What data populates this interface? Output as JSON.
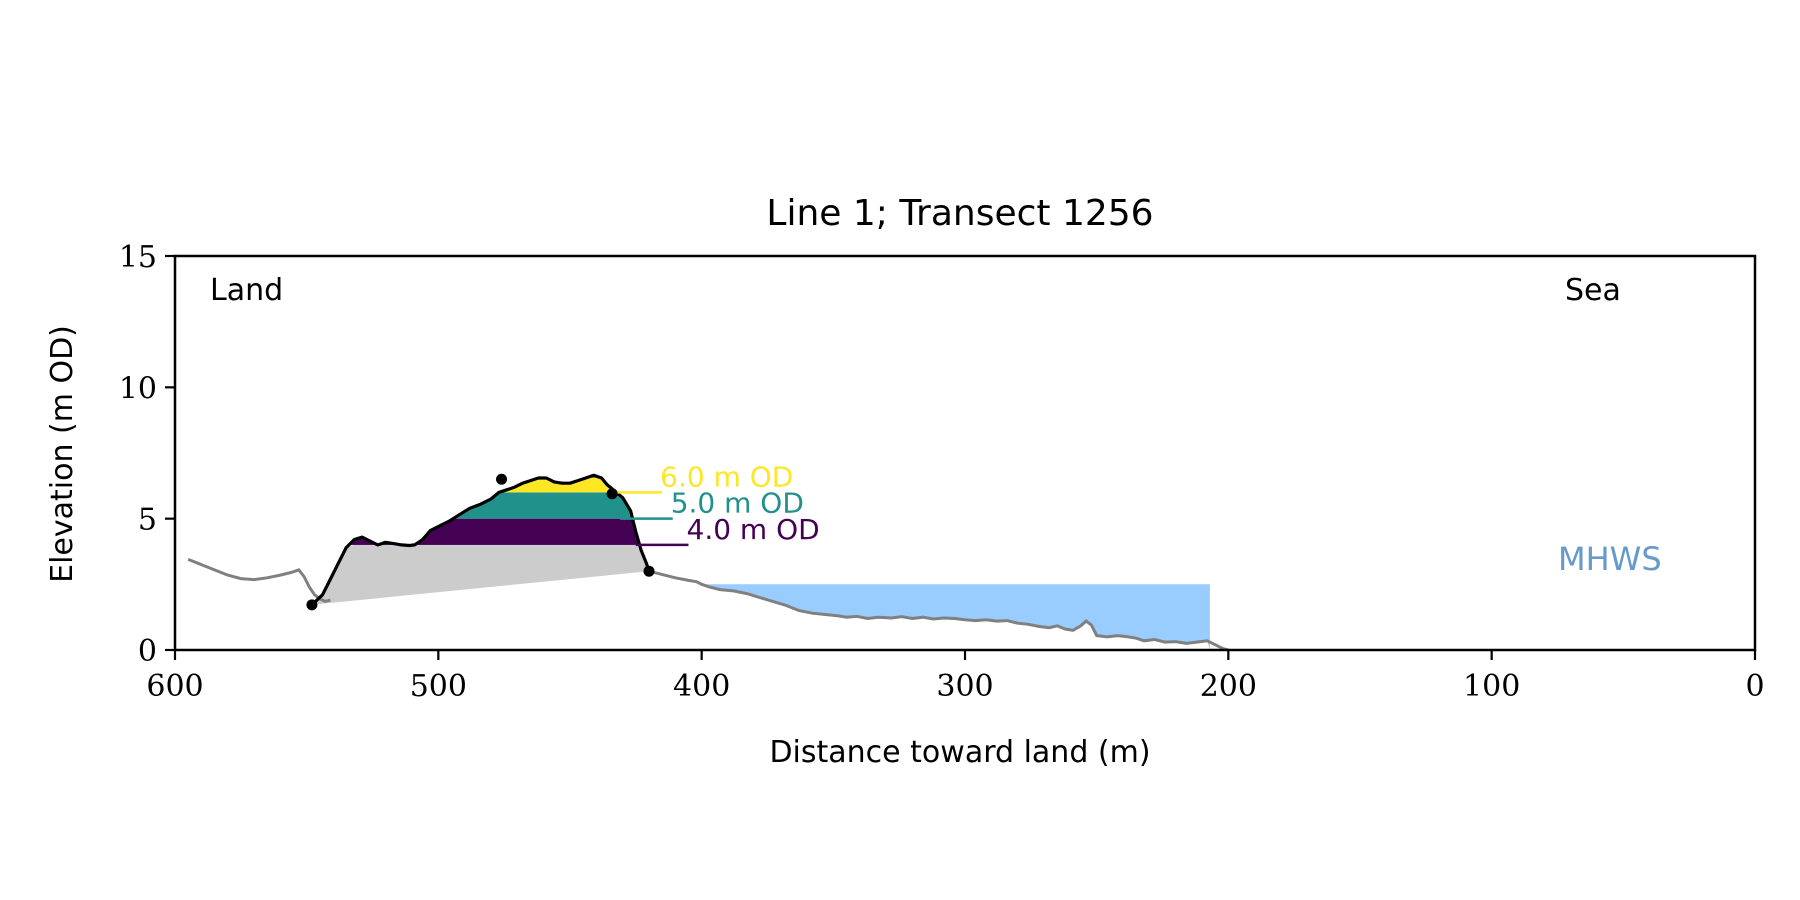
{
  "chart_data": {
    "type": "area",
    "title": "Line 1; Transect 1256",
    "xlabel": "Distance toward land (m)",
    "ylabel": "Elevation (m OD)",
    "xlim": [
      600,
      0
    ],
    "ylim": [
      0,
      15
    ],
    "xticks": [
      600,
      500,
      400,
      300,
      200,
      100,
      0
    ],
    "yticks": [
      0,
      5,
      10,
      15
    ],
    "grid": false,
    "annotations": {
      "land": "Land",
      "sea": "Sea",
      "mhws": "MHWS"
    },
    "colors": {
      "profile": "#808080",
      "dune": "#000000",
      "base": "#cccccc",
      "mhws_fill": "#99ccff",
      "mhws_text": "#6699cc",
      "level_4": "#440154",
      "level_5": "#21918c",
      "level_6": "#fde725"
    },
    "mhws": {
      "elevation": 2.5,
      "x_start": 400,
      "x_end": 207
    },
    "levels": [
      {
        "label": "4.0 m OD",
        "elevation": 4.0,
        "color": "#440154",
        "x_from": 516,
        "x_to": 425,
        "marker_end": 405
      },
      {
        "label": "5.0 m OD",
        "elevation": 5.0,
        "color": "#21918c",
        "x_from": 504,
        "x_to": 431,
        "marker_end": 411
      },
      {
        "label": "6.0 m OD",
        "elevation": 6.0,
        "color": "#fde725",
        "x_from": 483,
        "x_to": 434,
        "marker_end": 415
      }
    ],
    "profile": [
      [
        595,
        3.45
      ],
      [
        590,
        3.25
      ],
      [
        585,
        3.05
      ],
      [
        580,
        2.85
      ],
      [
        575,
        2.72
      ],
      [
        570,
        2.68
      ],
      [
        565,
        2.75
      ],
      [
        560,
        2.85
      ],
      [
        556,
        2.95
      ],
      [
        553,
        3.05
      ],
      [
        551,
        2.8
      ],
      [
        549,
        2.4
      ],
      [
        547,
        2.1
      ],
      [
        545,
        1.95
      ],
      [
        543,
        1.85
      ],
      [
        541,
        1.9
      ]
    ],
    "dune": [
      [
        548,
        1.72
      ],
      [
        544,
        2.1
      ],
      [
        541,
        2.7
      ],
      [
        538,
        3.3
      ],
      [
        535,
        3.9
      ],
      [
        532,
        4.2
      ],
      [
        529,
        4.3
      ],
      [
        526,
        4.15
      ],
      [
        523,
        4.0
      ],
      [
        520,
        4.1
      ],
      [
        517,
        4.05
      ],
      [
        514,
        4.0
      ],
      [
        511,
        3.98
      ],
      [
        509,
        4.0
      ],
      [
        506,
        4.2
      ],
      [
        503,
        4.55
      ],
      [
        499,
        4.75
      ],
      [
        496,
        4.9
      ],
      [
        492,
        5.15
      ],
      [
        488,
        5.4
      ],
      [
        484,
        5.55
      ],
      [
        480,
        5.75
      ],
      [
        477,
        6.0
      ],
      [
        474,
        6.1
      ],
      [
        471,
        6.2
      ],
      [
        468,
        6.35
      ],
      [
        465,
        6.45
      ],
      [
        462,
        6.55
      ],
      [
        459,
        6.55
      ],
      [
        456,
        6.4
      ],
      [
        453,
        6.35
      ],
      [
        450,
        6.35
      ],
      [
        447,
        6.45
      ],
      [
        444,
        6.55
      ],
      [
        441,
        6.65
      ],
      [
        438,
        6.55
      ],
      [
        436,
        6.3
      ],
      [
        433,
        6.05
      ],
      [
        430,
        5.8
      ],
      [
        427,
        5.3
      ],
      [
        425,
        4.5
      ],
      [
        423,
        3.8
      ],
      [
        421,
        3.3
      ],
      [
        420,
        3.0
      ]
    ],
    "dune_markers": [
      [
        548,
        1.72
      ],
      [
        476,
        6.5
      ],
      [
        434,
        5.95
      ],
      [
        420,
        3.0
      ]
    ],
    "seaward": [
      [
        420,
        3.0
      ],
      [
        416,
        2.9
      ],
      [
        410,
        2.75
      ],
      [
        405,
        2.65
      ],
      [
        402,
        2.6
      ],
      [
        400,
        2.5
      ],
      [
        397,
        2.4
      ],
      [
        393,
        2.3
      ],
      [
        388,
        2.25
      ],
      [
        383,
        2.15
      ],
      [
        378,
        2.0
      ],
      [
        373,
        1.85
      ],
      [
        368,
        1.7
      ],
      [
        363,
        1.5
      ],
      [
        358,
        1.4
      ],
      [
        353,
        1.35
      ],
      [
        348,
        1.3
      ],
      [
        345,
        1.25
      ],
      [
        341,
        1.28
      ],
      [
        337,
        1.2
      ],
      [
        333,
        1.25
      ],
      [
        328,
        1.22
      ],
      [
        324,
        1.27
      ],
      [
        320,
        1.2
      ],
      [
        316,
        1.25
      ],
      [
        312,
        1.18
      ],
      [
        308,
        1.22
      ],
      [
        304,
        1.2
      ],
      [
        300,
        1.15
      ],
      [
        296,
        1.12
      ],
      [
        292,
        1.15
      ],
      [
        288,
        1.1
      ],
      [
        284,
        1.12
      ],
      [
        280,
        1.02
      ],
      [
        276,
        0.98
      ],
      [
        272,
        0.9
      ],
      [
        268,
        0.85
      ],
      [
        265,
        0.92
      ],
      [
        262,
        0.8
      ],
      [
        259,
        0.75
      ],
      [
        256,
        0.92
      ],
      [
        254,
        1.1
      ],
      [
        252,
        0.95
      ],
      [
        250,
        0.55
      ],
      [
        246,
        0.5
      ],
      [
        242,
        0.55
      ],
      [
        238,
        0.5
      ],
      [
        235,
        0.45
      ],
      [
        232,
        0.35
      ],
      [
        228,
        0.4
      ],
      [
        224,
        0.3
      ],
      [
        220,
        0.32
      ],
      [
        216,
        0.25
      ],
      [
        212,
        0.3
      ],
      [
        208,
        0.35
      ],
      [
        205,
        0.2
      ],
      [
        202,
        0.05
      ],
      [
        200,
        0.0
      ]
    ]
  }
}
